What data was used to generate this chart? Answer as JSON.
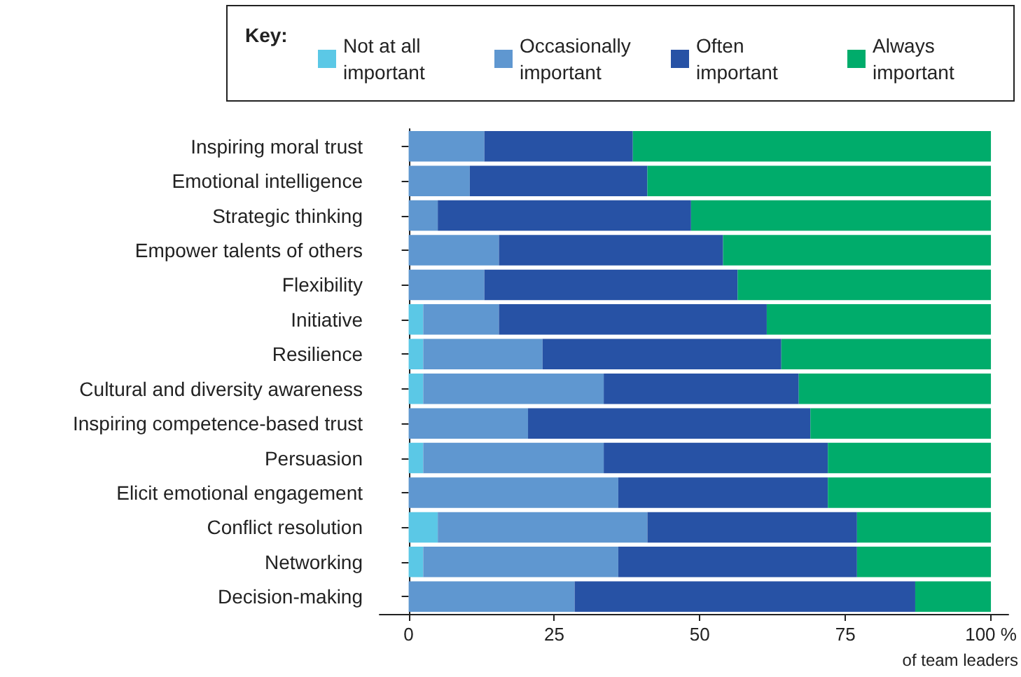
{
  "chart_data": {
    "type": "bar",
    "orientation": "horizontal",
    "stacked": true,
    "legend": "top",
    "legend_title": "Key:",
    "xlabel": "of team leaders",
    "categories": [
      "Inspiring moral trust",
      "Emotional intelligence",
      "Strategic thinking",
      "Empower talents of others",
      "Flexibility",
      "Initiative",
      "Resilience",
      "Cultural and diversity awareness",
      "Inspiring competence-based trust",
      "Persuasion",
      "Elicit emotional engagement",
      "Conflict resolution",
      "Networking",
      "Decision-making"
    ],
    "series": [
      {
        "name": "Not at all important",
        "color": "#5bc8e6",
        "values": [
          0,
          0,
          0,
          0,
          0,
          2.5,
          2.5,
          2.5,
          0,
          2.5,
          0,
          5,
          2.5,
          0
        ]
      },
      {
        "name": "Occasionally important",
        "color": "#5f97d0",
        "values": [
          13,
          10.5,
          5,
          15.5,
          13,
          13,
          20.5,
          31,
          20.5,
          31,
          36,
          36,
          33.5,
          28.5
        ]
      },
      {
        "name": "Often important",
        "color": "#2752a5",
        "values": [
          25.5,
          30.5,
          43.5,
          38.5,
          43.5,
          46,
          41,
          33.5,
          48.5,
          38.5,
          36,
          36,
          41,
          58.5
        ]
      },
      {
        "name": "Always important",
        "color": "#00ac6b",
        "values": [
          61.5,
          59,
          51.5,
          46,
          43.5,
          38.5,
          36,
          33,
          31,
          28,
          28,
          23,
          23,
          13
        ]
      }
    ],
    "xlim": [
      -5,
      103
    ],
    "xticks": [
      0,
      25,
      50,
      75,
      {
        "value": 100,
        "label": "100 %"
      }
    ]
  }
}
